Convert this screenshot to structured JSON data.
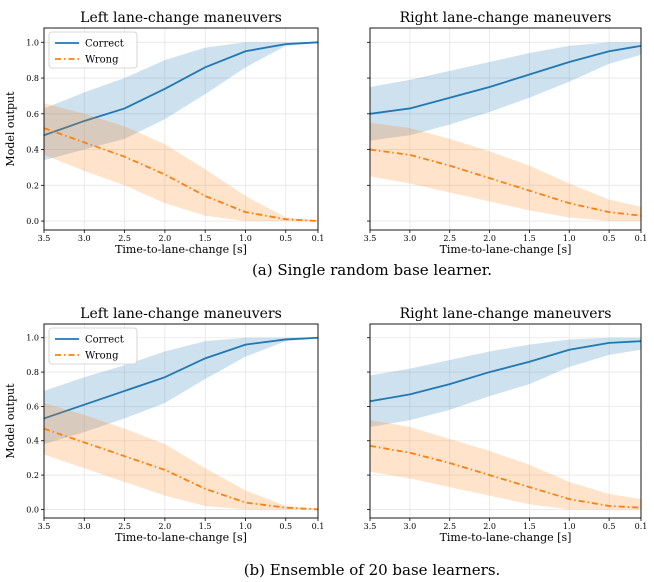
{
  "figure": {
    "captions": [
      "(a) Single random base learner.",
      "(b) Ensemble of 20 base learners."
    ]
  },
  "colors": {
    "correct": "#1f77b4",
    "wrong": "#ff7f0e"
  },
  "chart_data": [
    {
      "type": "line",
      "title": "Left lane-change maneuvers",
      "xlabel": "Time-to-lane-change [s]",
      "ylabel": "Model output",
      "x_reversed": true,
      "xlim": [
        3.5,
        0.1
      ],
      "ylim": [
        -0.05,
        1.08
      ],
      "xticks": [
        "3.5",
        "3.0",
        "2.5",
        "2.0",
        "1.5",
        "1.0",
        "0.5",
        "0.1"
      ],
      "yticks": [
        "0.0",
        "0.2",
        "0.4",
        "0.6",
        "0.8",
        "1.0"
      ],
      "grid": true,
      "legend": "top-left",
      "x": [
        3.5,
        3.0,
        2.5,
        2.0,
        1.5,
        1.0,
        0.5,
        0.1
      ],
      "series": [
        {
          "name": "Correct",
          "style": "solid",
          "values": [
            0.48,
            0.56,
            0.63,
            0.74,
            0.86,
            0.95,
            0.99,
            1.0
          ],
          "band_low": [
            0.34,
            0.4,
            0.46,
            0.57,
            0.71,
            0.86,
            0.98,
            0.995
          ],
          "band_high": [
            0.63,
            0.72,
            0.8,
            0.9,
            0.97,
            1.0,
            1.0,
            1.0
          ]
        },
        {
          "name": "Wrong",
          "style": "dashdot",
          "values": [
            0.52,
            0.44,
            0.36,
            0.26,
            0.14,
            0.05,
            0.01,
            0.0
          ],
          "band_low": [
            0.37,
            0.28,
            0.2,
            0.1,
            0.03,
            0.0,
            0.0,
            0.0
          ],
          "band_high": [
            0.66,
            0.6,
            0.53,
            0.43,
            0.29,
            0.14,
            0.02,
            0.005
          ]
        }
      ]
    },
    {
      "type": "line",
      "title": "Right lane-change maneuvers",
      "xlabel": "Time-to-lane-change [s]",
      "ylabel": "",
      "x_reversed": true,
      "xlim": [
        3.5,
        0.1
      ],
      "ylim": [
        -0.05,
        1.08
      ],
      "xticks": [
        "3.5",
        "3.0",
        "2.5",
        "2.0",
        "1.5",
        "1.0",
        "0.5",
        "0.1"
      ],
      "yticks": [],
      "grid": true,
      "legend": "none",
      "x": [
        3.5,
        3.0,
        2.5,
        2.0,
        1.5,
        1.0,
        0.5,
        0.1
      ],
      "series": [
        {
          "name": "",
          "style": "solid",
          "values": [
            0.6,
            0.63,
            0.69,
            0.75,
            0.82,
            0.89,
            0.95,
            0.98
          ],
          "band_low": [
            0.45,
            0.48,
            0.54,
            0.61,
            0.69,
            0.78,
            0.88,
            0.93
          ],
          "band_high": [
            0.75,
            0.79,
            0.84,
            0.89,
            0.94,
            0.98,
            1.0,
            1.0
          ]
        },
        {
          "name": "",
          "style": "dashdot",
          "values": [
            0.4,
            0.37,
            0.31,
            0.24,
            0.17,
            0.1,
            0.05,
            0.03
          ],
          "band_low": [
            0.25,
            0.21,
            0.16,
            0.11,
            0.06,
            0.02,
            0.0,
            0.0
          ],
          "band_high": [
            0.55,
            0.52,
            0.46,
            0.39,
            0.31,
            0.21,
            0.12,
            0.08
          ]
        }
      ]
    },
    {
      "type": "line",
      "title": "Left lane-change maneuvers",
      "xlabel": "Time-to-lane-change [s]",
      "ylabel": "Model output",
      "x_reversed": true,
      "xlim": [
        3.5,
        0.1
      ],
      "ylim": [
        -0.05,
        1.08
      ],
      "xticks": [
        "3.5",
        "3.0",
        "2.5",
        "2.0",
        "1.5",
        "1.0",
        "0.5",
        "0.1"
      ],
      "yticks": [
        "0.0",
        "0.2",
        "0.4",
        "0.6",
        "0.8",
        "1.0"
      ],
      "grid": true,
      "legend": "top-left",
      "x": [
        3.5,
        3.0,
        2.5,
        2.0,
        1.5,
        1.0,
        0.5,
        0.1
      ],
      "series": [
        {
          "name": "Correct",
          "style": "solid",
          "values": [
            0.53,
            0.61,
            0.69,
            0.77,
            0.88,
            0.96,
            0.99,
            1.0
          ],
          "band_low": [
            0.38,
            0.45,
            0.53,
            0.62,
            0.76,
            0.89,
            0.98,
            0.995
          ],
          "band_high": [
            0.69,
            0.77,
            0.84,
            0.92,
            0.98,
            1.0,
            1.0,
            1.0
          ]
        },
        {
          "name": "Wrong",
          "style": "dashdot",
          "values": [
            0.47,
            0.39,
            0.31,
            0.23,
            0.12,
            0.04,
            0.01,
            0.0
          ],
          "band_low": [
            0.32,
            0.24,
            0.16,
            0.08,
            0.02,
            0.0,
            0.0,
            0.0
          ],
          "band_high": [
            0.62,
            0.55,
            0.47,
            0.38,
            0.24,
            0.11,
            0.02,
            0.005
          ]
        }
      ]
    },
    {
      "type": "line",
      "title": "Right lane-change maneuvers",
      "xlabel": "Time-to-lane-change [s]",
      "ylabel": "",
      "x_reversed": true,
      "xlim": [
        3.5,
        0.1
      ],
      "ylim": [
        -0.05,
        1.08
      ],
      "xticks": [
        "3.5",
        "3.0",
        "2.5",
        "2.0",
        "1.5",
        "1.0",
        "0.5",
        "0.1"
      ],
      "yticks": [],
      "grid": true,
      "legend": "none",
      "x": [
        3.5,
        3.0,
        2.5,
        2.0,
        1.5,
        1.0,
        0.5,
        0.1
      ],
      "series": [
        {
          "name": "",
          "style": "solid",
          "values": [
            0.63,
            0.67,
            0.73,
            0.8,
            0.86,
            0.93,
            0.97,
            0.98
          ],
          "band_low": [
            0.48,
            0.52,
            0.58,
            0.66,
            0.73,
            0.83,
            0.9,
            0.93
          ],
          "band_high": [
            0.78,
            0.82,
            0.87,
            0.92,
            0.96,
            0.99,
            1.0,
            1.0
          ]
        },
        {
          "name": "",
          "style": "dashdot",
          "values": [
            0.37,
            0.33,
            0.27,
            0.2,
            0.13,
            0.06,
            0.02,
            0.01
          ],
          "band_low": [
            0.22,
            0.18,
            0.13,
            0.08,
            0.03,
            0.0,
            0.0,
            0.0
          ],
          "band_high": [
            0.52,
            0.48,
            0.41,
            0.34,
            0.26,
            0.16,
            0.09,
            0.06
          ]
        }
      ]
    }
  ]
}
